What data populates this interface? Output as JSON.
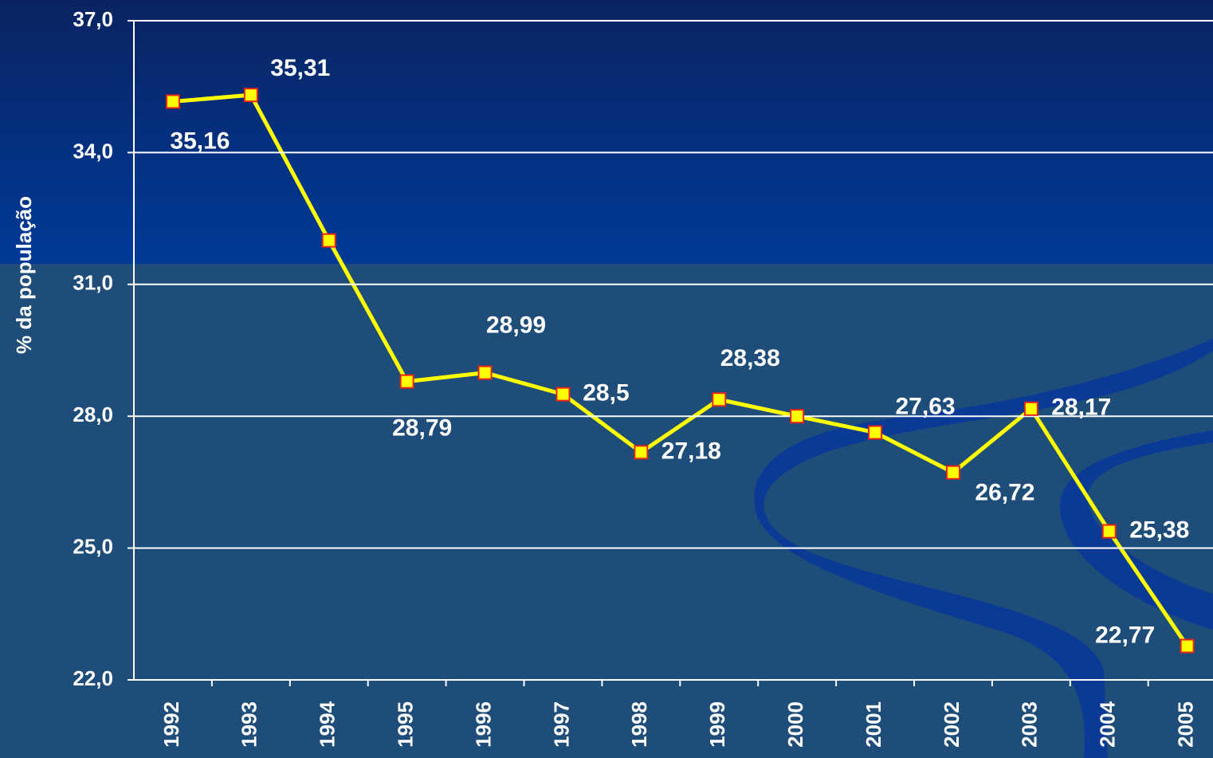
{
  "chart_data": {
    "type": "line",
    "y_label": "% da população",
    "categories": [
      "1992",
      "1993",
      "1994",
      "1995",
      "1996",
      "1997",
      "1998",
      "1999",
      "2000",
      "2001",
      "2002",
      "2003",
      "2004",
      "2005"
    ],
    "values": [
      35.16,
      35.31,
      32.0,
      28.79,
      28.99,
      28.5,
      27.18,
      28.38,
      28.0,
      27.63,
      26.72,
      28.17,
      25.38,
      22.77
    ],
    "value_labels": [
      "35,16",
      "35,31",
      null,
      "28,79",
      "28,99",
      "28,5",
      "27,18",
      "28,38",
      null,
      "27,63",
      "26,72",
      "28,17",
      "25,38",
      "22,77"
    ],
    "color": "#ffff00",
    "marker_color": "#ffff00",
    "marker_edge": "#e8231c",
    "ylim": [
      22,
      37
    ],
    "yticks": [
      {
        "value": 22,
        "label": "22,0"
      },
      {
        "value": 25,
        "label": "25,0"
      },
      {
        "value": 28,
        "label": "28,0"
      },
      {
        "value": 31,
        "label": "31,0"
      },
      {
        "value": 34,
        "label": "34,0"
      },
      {
        "value": 37,
        "label": "37,0"
      }
    ],
    "grid": true
  }
}
